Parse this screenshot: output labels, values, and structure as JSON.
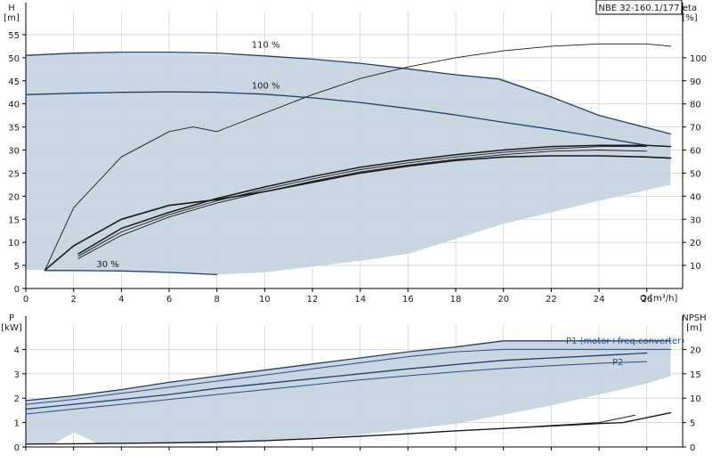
{
  "chart_data": [
    {
      "type": "line",
      "title": "NBE 32-160.1/177",
      "xlabel": "Q [m³/h]",
      "ylabel": "H\n[m]",
      "y2label": "eta\n[%]",
      "xlim": [
        0,
        27.5
      ],
      "ylim": [
        0,
        60
      ],
      "y2lim": [
        0,
        120
      ],
      "x_ticks": [
        0,
        2,
        4,
        6,
        8,
        10,
        12,
        14,
        16,
        18,
        20,
        22,
        24,
        26
      ],
      "y_ticks": [
        0,
        5,
        10,
        15,
        20,
        25,
        30,
        35,
        40,
        45,
        50,
        55
      ],
      "y2_ticks": [
        10,
        20,
        30,
        40,
        50,
        60,
        70,
        80,
        90,
        100
      ],
      "grid": true,
      "region": {
        "name": "operating range",
        "upper": [
          [
            0,
            50.5
          ],
          [
            2,
            51
          ],
          [
            6,
            51
          ],
          [
            10,
            50.3
          ],
          [
            14,
            48.8
          ],
          [
            18,
            46.3
          ],
          [
            20,
            45.5
          ],
          [
            22,
            41.5
          ],
          [
            24,
            37.5
          ],
          [
            27,
            33.5
          ]
        ],
        "lower": [
          [
            27,
            22.5
          ],
          [
            24,
            19
          ],
          [
            20,
            14
          ],
          [
            16,
            7.5
          ],
          [
            14,
            6
          ],
          [
            10,
            3.5
          ],
          [
            8,
            3
          ],
          [
            6,
            3.5
          ],
          [
            3,
            4
          ],
          [
            0.8,
            4
          ],
          [
            0,
            4
          ]
        ]
      },
      "series": [
        {
          "name": "110 %",
          "axis": "H",
          "points": [
            [
              0,
              50.5
            ],
            [
              2,
              51
            ],
            [
              4,
              51.2
            ],
            [
              6,
              51.2
            ],
            [
              8,
              51
            ],
            [
              10,
              50.4
            ],
            [
              12,
              49.7
            ],
            [
              14,
              48.8
            ],
            [
              16,
              47.6
            ],
            [
              18,
              46.3
            ],
            [
              19.8,
              45.4
            ],
            [
              22,
              41.5
            ],
            [
              24,
              37.5
            ],
            [
              27,
              33.5
            ]
          ]
        },
        {
          "name": "100 %",
          "axis": "H",
          "points": [
            [
              0,
              42
            ],
            [
              2,
              42.3
            ],
            [
              4,
              42.5
            ],
            [
              6,
              42.6
            ],
            [
              8,
              42.5
            ],
            [
              10,
              42.1
            ],
            [
              12,
              41.3
            ],
            [
              14,
              40.3
            ],
            [
              16,
              39
            ],
            [
              18,
              37.6
            ],
            [
              20,
              36
            ],
            [
              22,
              34.5
            ],
            [
              24,
              32.8
            ],
            [
              26,
              31
            ]
          ]
        },
        {
          "name": "30 %",
          "axis": "H",
          "points": [
            [
              0.8,
              3.9
            ],
            [
              2,
              3.9
            ],
            [
              4,
              3.8
            ],
            [
              6,
              3.5
            ],
            [
              8,
              3.0
            ]
          ]
        },
        {
          "name": "",
          "axis": "eta",
          "points": [
            [
              0.8,
              8
            ],
            [
              2,
              35
            ],
            [
              4,
              57
            ],
            [
              6,
              68
            ],
            [
              7,
              70
            ],
            [
              8,
              68
            ],
            [
              10,
              76
            ],
            [
              12,
              84
            ],
            [
              14,
              91
            ],
            [
              16,
              96
            ],
            [
              18,
              100
            ],
            [
              20,
              103
            ],
            [
              22,
              105
            ],
            [
              24,
              106
            ],
            [
              26,
              106
            ],
            [
              27,
              105
            ]
          ]
        },
        {
          "name": "",
          "axis": "eta",
          "points": [
            [
              2.2,
              15
            ],
            [
              4,
              26
            ],
            [
              6,
              33
            ],
            [
              8,
              39
            ],
            [
              10,
              44
            ],
            [
              12,
              48.5
            ],
            [
              14,
              52.5
            ],
            [
              16,
              55.5
            ],
            [
              18,
              58
            ],
            [
              20,
              60
            ],
            [
              22,
              61.5
            ],
            [
              24,
              62
            ],
            [
              26,
              62
            ],
            [
              27,
              61.5
            ]
          ]
        },
        {
          "name": "",
          "axis": "eta",
          "points": [
            [
              2.2,
              14
            ],
            [
              4,
              24.5
            ],
            [
              6,
              32
            ],
            [
              8,
              38
            ],
            [
              10,
              43
            ],
            [
              12,
              47.5
            ],
            [
              14,
              51.5
            ],
            [
              16,
              54.5
            ],
            [
              18,
              57
            ],
            [
              20,
              59
            ],
            [
              22,
              60.5
            ],
            [
              24,
              61.5
            ],
            [
              26,
              61.5
            ]
          ]
        },
        {
          "name": "",
          "axis": "eta",
          "points": [
            [
              2.2,
              13
            ],
            [
              4,
              23
            ],
            [
              6,
              31
            ],
            [
              8,
              37
            ],
            [
              10,
              42
            ],
            [
              12,
              46.5
            ],
            [
              14,
              50.5
            ],
            [
              16,
              53.5
            ],
            [
              18,
              56
            ],
            [
              20,
              58
            ],
            [
              22,
              59.5
            ],
            [
              24,
              60
            ],
            [
              26,
              59.5
            ]
          ]
        },
        {
          "name": "",
          "axis": "eta",
          "points": [
            [
              0.8,
              8
            ],
            [
              2,
              18.5
            ],
            [
              4,
              30
            ],
            [
              6,
              36
            ],
            [
              8,
              38.5
            ],
            [
              10,
              42
            ],
            [
              12,
              46
            ],
            [
              14,
              50
            ],
            [
              16,
              53
            ],
            [
              18,
              55.5
            ],
            [
              20,
              57
            ],
            [
              22,
              57.5
            ],
            [
              24,
              57.5
            ],
            [
              26,
              57
            ],
            [
              27,
              56.5
            ]
          ]
        }
      ]
    },
    {
      "type": "line",
      "xlabel": "",
      "ylabel": "P\n[kW]",
      "y2label": "NPSH\n[m]",
      "xlim": [
        0,
        27.5
      ],
      "ylim": [
        0,
        5
      ],
      "y2lim": [
        0,
        25
      ],
      "y_ticks": [
        0,
        1,
        2,
        3,
        4
      ],
      "y2_ticks": [
        0,
        5,
        10,
        15,
        20
      ],
      "grid": true,
      "region": {
        "name": "power range",
        "upper": [
          [
            0,
            1.9
          ],
          [
            2,
            2.1
          ],
          [
            6,
            2.65
          ],
          [
            10,
            3.15
          ],
          [
            14,
            3.65
          ],
          [
            18,
            4.1
          ],
          [
            20,
            4.35
          ],
          [
            27,
            4.35
          ]
        ],
        "lower": [
          [
            27,
            2.9
          ],
          [
            26,
            2.6
          ],
          [
            22,
            1.7
          ],
          [
            18,
            0.95
          ],
          [
            14,
            0.5
          ],
          [
            10,
            0.25
          ],
          [
            6,
            0.15
          ],
          [
            3,
            0.15
          ],
          [
            2,
            0.6
          ],
          [
            1.2,
            0.15
          ],
          [
            0,
            0.15
          ]
        ]
      },
      "series": [
        {
          "name": "",
          "axis": "P",
          "points": [
            [
              0,
              1.9
            ],
            [
              2,
              2.1
            ],
            [
              4,
              2.35
            ],
            [
              6,
              2.65
            ],
            [
              8,
              2.9
            ],
            [
              10,
              3.15
            ],
            [
              12,
              3.4
            ],
            [
              14,
              3.65
            ],
            [
              16,
              3.9
            ],
            [
              18,
              4.1
            ],
            [
              20,
              4.35
            ],
            [
              22,
              4.35
            ],
            [
              24,
              4.35
            ],
            [
              27,
              4.35
            ]
          ]
        },
        {
          "name": "P1 (motor+freq.converter)",
          "axis": "P",
          "points": [
            [
              0,
              1.75
            ],
            [
              2,
              1.95
            ],
            [
              4,
              2.2
            ],
            [
              6,
              2.45
            ],
            [
              8,
              2.7
            ],
            [
              10,
              2.95
            ],
            [
              12,
              3.2
            ],
            [
              14,
              3.45
            ],
            [
              16,
              3.7
            ],
            [
              18,
              3.9
            ],
            [
              20,
              4.0
            ],
            [
              22,
              4.0
            ],
            [
              24,
              4.0
            ],
            [
              27,
              4.0
            ]
          ]
        },
        {
          "name": "P2",
          "axis": "P",
          "points": [
            [
              0,
              1.55
            ],
            [
              2,
              1.75
            ],
            [
              4,
              1.95
            ],
            [
              6,
              2.15
            ],
            [
              8,
              2.4
            ],
            [
              10,
              2.6
            ],
            [
              12,
              2.8
            ],
            [
              14,
              3.0
            ],
            [
              16,
              3.2
            ],
            [
              18,
              3.38
            ],
            [
              20,
              3.55
            ],
            [
              22,
              3.65
            ],
            [
              24,
              3.75
            ],
            [
              26,
              3.85
            ]
          ]
        },
        {
          "name": "",
          "axis": "P",
          "points": [
            [
              0,
              1.35
            ],
            [
              2,
              1.55
            ],
            [
              4,
              1.75
            ],
            [
              6,
              1.95
            ],
            [
              8,
              2.15
            ],
            [
              10,
              2.35
            ],
            [
              12,
              2.55
            ],
            [
              14,
              2.75
            ],
            [
              16,
              2.92
            ],
            [
              18,
              3.08
            ],
            [
              20,
              3.22
            ],
            [
              22,
              3.33
            ],
            [
              24,
              3.43
            ],
            [
              26,
              3.5
            ]
          ]
        },
        {
          "name": "",
          "axis": "NPSH",
          "points": [
            [
              0,
              0.6
            ],
            [
              2,
              0.65
            ],
            [
              4,
              0.75
            ],
            [
              6,
              0.85
            ],
            [
              8,
              1.0
            ],
            [
              10,
              1.3
            ],
            [
              12,
              1.7
            ],
            [
              14,
              2.2
            ],
            [
              16,
              2.7
            ],
            [
              18,
              3.3
            ],
            [
              20,
              3.8
            ],
            [
              22,
              4.3
            ],
            [
              24,
              4.8
            ],
            [
              25,
              5.0
            ],
            [
              26,
              6.0
            ],
            [
              27,
              7.0
            ]
          ]
        },
        {
          "name": "",
          "axis": "NPSH",
          "points": [
            [
              20,
              3.8
            ],
            [
              22,
              4.4
            ],
            [
              24,
              5.0
            ],
            [
              25.5,
              6.5
            ]
          ]
        }
      ]
    }
  ]
}
